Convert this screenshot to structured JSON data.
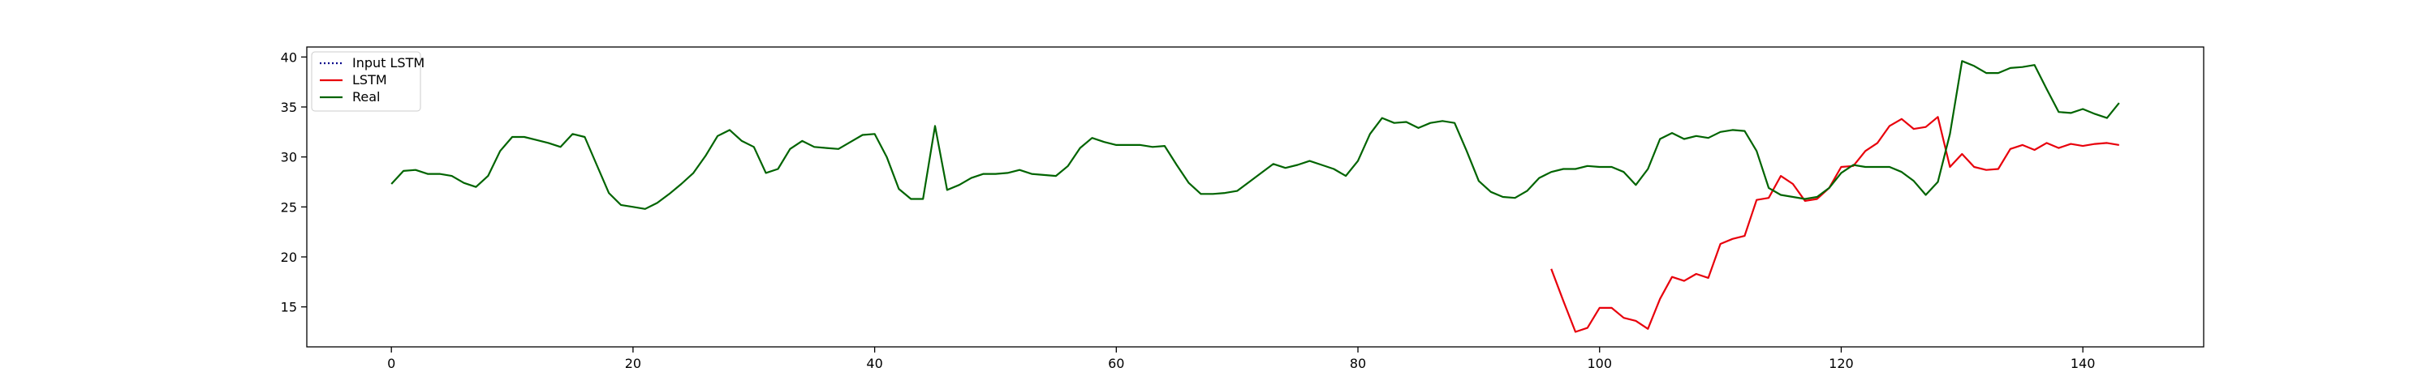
{
  "chart_data": {
    "type": "line",
    "title": "",
    "xlabel": "",
    "ylabel": "",
    "xlim": [
      -7,
      150
    ],
    "ylim": [
      11,
      41
    ],
    "xticks": [
      0,
      20,
      40,
      60,
      80,
      100,
      120,
      140
    ],
    "yticks": [
      15,
      20,
      25,
      30,
      35,
      40
    ],
    "grid": false,
    "legend_position": "top-left",
    "series": [
      {
        "name": "Input LSTM",
        "color": "#00008b",
        "style": "dotted",
        "x": [],
        "y": []
      },
      {
        "name": "LSTM",
        "color": "#e8000b",
        "style": "solid",
        "x_start": 96,
        "y": [
          18.8,
          15.6,
          12.5,
          12.9,
          14.9,
          14.9,
          13.9,
          13.6,
          12.8,
          15.8,
          18.0,
          17.6,
          18.3,
          17.9,
          21.3,
          21.8,
          22.1,
          25.7,
          25.9,
          28.1,
          27.3,
          25.6,
          25.8,
          26.9,
          29.0,
          29.1,
          30.6,
          31.4,
          33.1,
          33.8,
          32.8,
          33.0,
          34.0,
          29.0,
          30.3,
          29.0,
          28.7,
          28.8,
          30.8,
          31.2,
          30.7,
          31.4,
          30.9,
          31.3,
          31.1,
          31.3,
          31.4,
          31.2
        ]
      },
      {
        "name": "Real",
        "color": "#006400",
        "style": "solid",
        "x_start": 0,
        "y": [
          27.3,
          28.6,
          28.7,
          28.3,
          28.3,
          28.1,
          27.4,
          27.0,
          28.1,
          30.6,
          32.0,
          32.0,
          31.7,
          31.4,
          31.0,
          32.3,
          32.0,
          29.2,
          26.4,
          25.2,
          25.0,
          24.8,
          25.4,
          26.3,
          27.3,
          28.4,
          30.1,
          32.1,
          32.7,
          31.6,
          31.0,
          28.4,
          28.8,
          30.8,
          31.6,
          31.0,
          30.9,
          30.8,
          31.5,
          32.2,
          32.3,
          30.0,
          26.8,
          25.8,
          25.8,
          33.1,
          26.7,
          27.2,
          27.9,
          28.3,
          28.3,
          28.4,
          28.7,
          28.3,
          28.2,
          28.1,
          29.1,
          30.9,
          31.9,
          31.5,
          31.2,
          31.2,
          31.2,
          31.0,
          31.1,
          29.2,
          27.4,
          26.3,
          26.3,
          26.4,
          26.6,
          27.5,
          28.4,
          29.3,
          28.9,
          29.2,
          29.6,
          29.2,
          28.8,
          28.1,
          29.6,
          32.3,
          33.9,
          33.4,
          33.5,
          32.9,
          33.4,
          33.6,
          33.4,
          30.6,
          27.6,
          26.5,
          26.0,
          25.9,
          26.6,
          27.9,
          28.5,
          28.8,
          28.8,
          29.1,
          29.0,
          29.0,
          28.5,
          27.2,
          28.8,
          31.8,
          32.4,
          31.8,
          32.1,
          31.9,
          32.5,
          32.7,
          32.6,
          30.6,
          26.9,
          26.2,
          26.0,
          25.8,
          26.0,
          26.9,
          28.4,
          29.2,
          29.0,
          29.0,
          29.0,
          28.5,
          27.6,
          26.2,
          27.5,
          32.3,
          39.6,
          39.1,
          38.4,
          38.4,
          38.9,
          39.0,
          39.2,
          36.8,
          34.5,
          34.4,
          34.8,
          34.3,
          33.9,
          35.4
        ]
      }
    ]
  }
}
